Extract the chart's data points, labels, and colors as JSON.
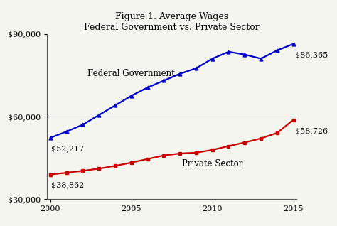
{
  "title_line1": "Figure 1. Average Wages",
  "title_line2": "Federal Government vs. Private Sector",
  "years": [
    2000,
    2001,
    2002,
    2003,
    2004,
    2005,
    2006,
    2007,
    2008,
    2009,
    2010,
    2011,
    2012,
    2013,
    2014,
    2015
  ],
  "federal": [
    52217,
    54500,
    57000,
    60500,
    64000,
    67500,
    70500,
    73000,
    75500,
    77500,
    81000,
    83500,
    82500,
    81000,
    84000,
    86365
  ],
  "private": [
    38862,
    39500,
    40200,
    41000,
    42000,
    43200,
    44500,
    45800,
    46500,
    46800,
    47800,
    49200,
    50500,
    52000,
    54000,
    58726
  ],
  "federal_color": "#0000CC",
  "private_color": "#CC0000",
  "federal_label": "Federal Government",
  "private_label": "Private Sector",
  "federal_start_label": "$52,217",
  "federal_end_label": "$86,365",
  "private_start_label": "$38,862",
  "private_end_label": "$58,726",
  "ylim": [
    30000,
    90000
  ],
  "yticks": [
    30000,
    60000,
    90000
  ],
  "xlim": [
    1999.8,
    2015.2
  ],
  "xticks": [
    2000,
    2005,
    2010,
    2015
  ],
  "background_color": "#f5f5f0",
  "grid_color": "#888888",
  "marker_federal": "^",
  "marker_private": "s",
  "linewidth": 1.6,
  "markersize": 3.5,
  "title_fontsize": 9,
  "label_fontsize": 8.5,
  "tick_fontsize": 8,
  "annot_fontsize": 8
}
